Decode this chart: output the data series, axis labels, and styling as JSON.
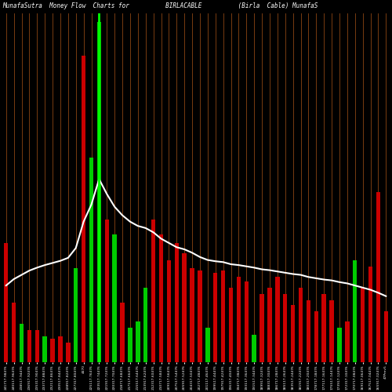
{
  "title": "MunafaSutra  Money Flow  Charts for          BIRLACABLE          (Birla  Cable) MunafaS",
  "background_color": "#000000",
  "bar_colors_pattern": [
    "red",
    "red",
    "green",
    "red",
    "red",
    "green",
    "red",
    "red",
    "red",
    "green",
    "red",
    "green",
    "green",
    "red",
    "green",
    "red",
    "green",
    "green",
    "green",
    "red",
    "red",
    "red",
    "red",
    "red",
    "red",
    "red",
    "green",
    "red",
    "red",
    "red",
    "red",
    "red",
    "green",
    "red",
    "red",
    "red",
    "red",
    "red",
    "red",
    "red",
    "red",
    "red",
    "red",
    "green",
    "red",
    "green",
    "red",
    "red",
    "red",
    "red"
  ],
  "bar_heights": [
    280,
    140,
    90,
    75,
    75,
    60,
    55,
    60,
    45,
    220,
    720,
    480,
    800,
    335,
    300,
    140,
    80,
    95,
    175,
    335,
    300,
    240,
    280,
    255,
    220,
    215,
    80,
    210,
    215,
    175,
    200,
    190,
    65,
    160,
    175,
    200,
    160,
    135,
    175,
    145,
    120,
    160,
    145,
    80,
    95,
    240,
    175,
    225,
    400,
    120
  ],
  "line_values": [
    180,
    195,
    205,
    215,
    222,
    228,
    233,
    238,
    245,
    268,
    330,
    370,
    430,
    395,
    365,
    345,
    330,
    320,
    315,
    305,
    290,
    280,
    270,
    265,
    257,
    247,
    240,
    237,
    235,
    230,
    228,
    225,
    222,
    218,
    216,
    213,
    210,
    207,
    205,
    200,
    197,
    194,
    192,
    188,
    185,
    180,
    175,
    170,
    163,
    155
  ],
  "grid_color": "#8B4513",
  "line_color": "#ffffff",
  "bar_color_green": "#00cc00",
  "bar_color_red": "#cc0000",
  "tick_labels": [
    "241717.98476",
    "240117.96476",
    "238517.94476",
    "236917.92476",
    "235317.90476",
    "233717.88476",
    "232117.86476",
    "230517.84476",
    "228917.82476",
    "227317.80476",
    "4470",
    "225117.76476",
    "223517.74476",
    "221917.72476",
    "220317.70476",
    "218717.68476",
    "217117.66476",
    "215517.64476",
    "213917.62476",
    "212317.60476",
    "210717.58476",
    "209117.56476",
    "207517.54476",
    "205917.52476",
    "204317.50476",
    "202717.48476",
    "201117.46476",
    "199517.44476",
    "197917.42476",
    "196317.40476",
    "194717.38476",
    "193117.36476",
    "191517.34476",
    "189917.32476",
    "188317.30476",
    "186717.28476",
    "185117.26476",
    "183517.24476",
    "181917.22476",
    "180317.20476",
    "178717.18476",
    "177117.16476",
    "175517.14476",
    "173917.12476",
    "172317.10476",
    "170717.08476",
    "169117.06476",
    "167517.04476",
    "165917.02476",
    "47Prev5"
  ],
  "vertical_line_idx": 12,
  "vertical_line_color": "#00ff00",
  "ymax": 820,
  "fig_width": 5.0,
  "fig_height": 5.0,
  "dpi": 100
}
